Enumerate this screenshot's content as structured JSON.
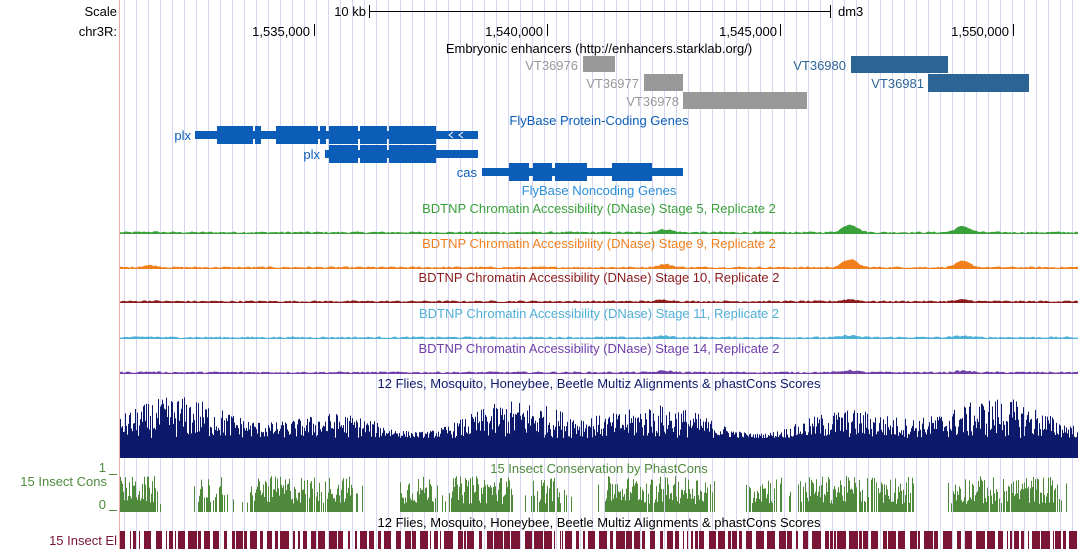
{
  "ruler": {
    "scale_label": "Scale",
    "scale_value": "10 kb",
    "assembly": "dm3",
    "chrom_label": "chr3R:",
    "positions": [
      "1,535,000",
      "1,540,000",
      "1,545,000",
      "1,550,000"
    ]
  },
  "tracks": {
    "enhancers": {
      "title": "Embryonic enhancers (http://enhancers.starklab.org/)",
      "items": [
        "VT36976",
        "VT36977",
        "VT36978",
        "VT36980",
        "VT36981"
      ]
    },
    "flybase_coding": {
      "title": "FlyBase Protein-Coding Genes",
      "genes": [
        "plx",
        "plx",
        "cas"
      ]
    },
    "flybase_noncoding": {
      "title": "FlyBase Noncoding Genes"
    },
    "dnase": [
      {
        "title": "BDTNP Chromatin Accessibility (DNase) Stage 5, Replicate 2",
        "color": "#3aa13a"
      },
      {
        "title": "BDTNP Chromatin Accessibility (DNase) Stage 9, Replicate 2",
        "color": "#f07f1c"
      },
      {
        "title": "BDTNP Chromatin Accessibility (DNase) Stage 10, Replicate 2",
        "color": "#8c1b1b"
      },
      {
        "title": "BDTNP Chromatin Accessibility (DNase) Stage 11, Replicate 2",
        "color": "#4fb0d6"
      },
      {
        "title": "BDTNP Chromatin Accessibility (DNase) Stage 14, Replicate 2",
        "color": "#7040a8"
      }
    ],
    "multiz": {
      "title": "12 Flies, Mosquito, Honeybee, Beetle Multiz Alignments & phastCons Scores"
    },
    "phastcons": {
      "title": "15 Insect Conservation by PhastCons",
      "side_label": "15 Insect Cons",
      "axis_max": "1",
      "axis_min": "0"
    },
    "elements": {
      "title": "12 Flies, Mosquito, Honeybee, Beetle Multiz Alignments & phastCons Scores",
      "side_label": "15 Insect El"
    }
  },
  "colors": {
    "grid": "#d6d6f3",
    "left_border": "#f4a9a9",
    "enhancer_gray": "#999999",
    "enhancer_blue": "#2c6496",
    "flybase_blue": "#0b5db8",
    "noncoding_blue": "#2d8ed8",
    "multiz_navy": "#0d1a6b",
    "phastcons_green": "#4f8a3c",
    "elements_maroon": "#7a1535"
  }
}
